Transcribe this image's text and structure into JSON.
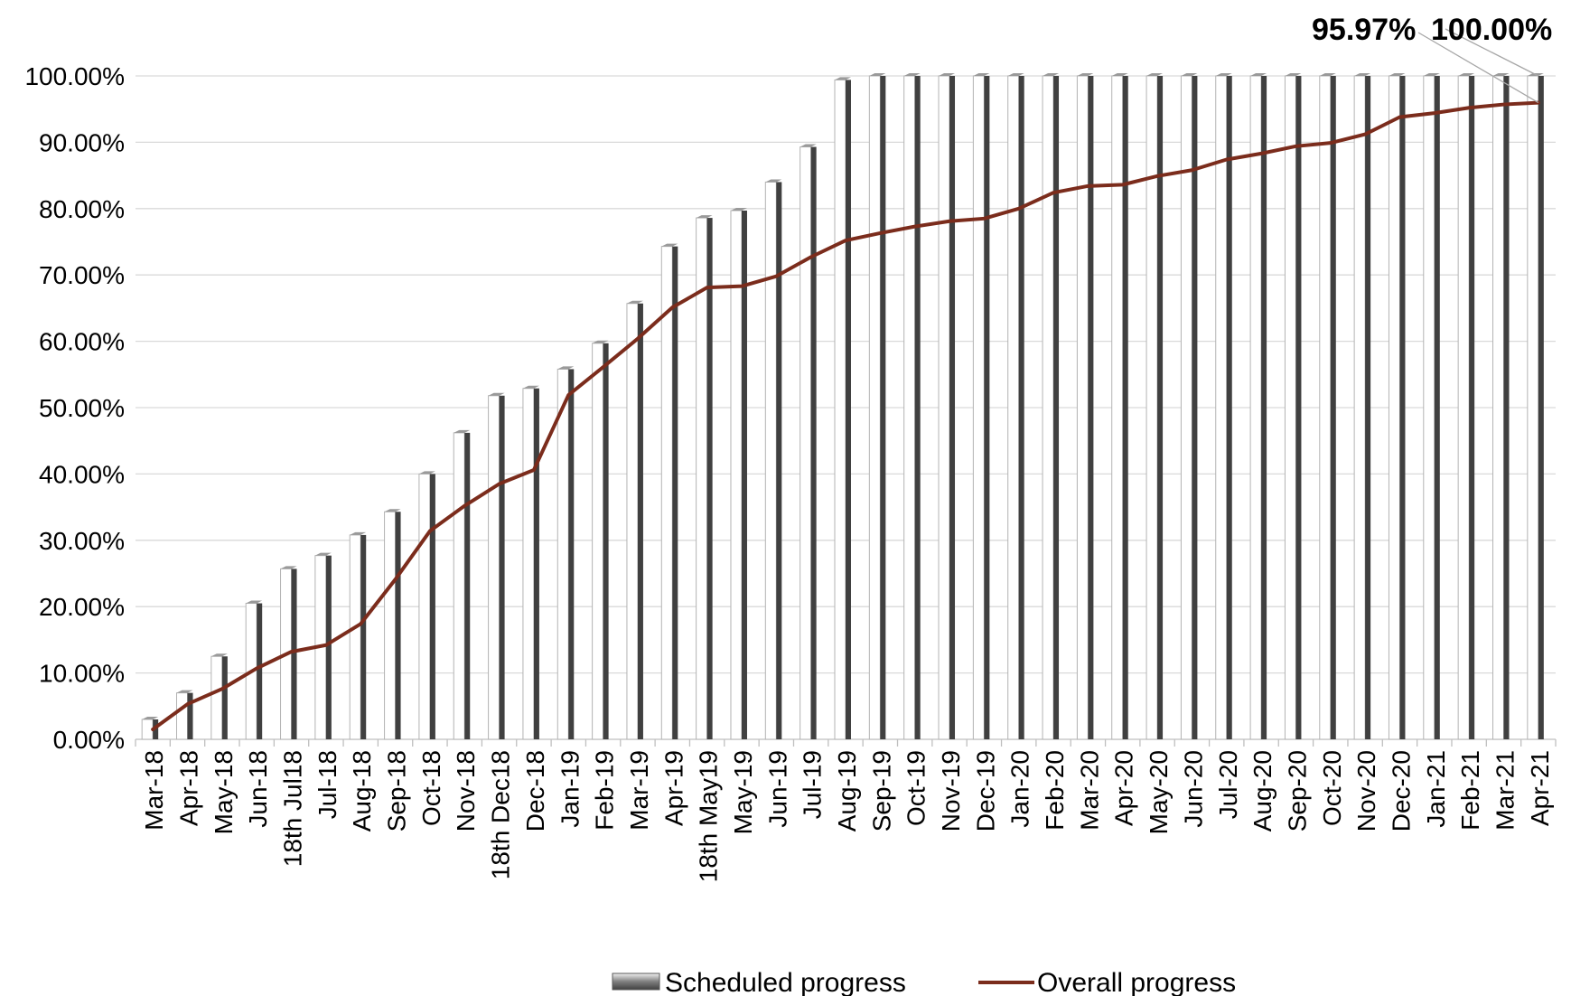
{
  "chart_data": {
    "type": "bar",
    "categories": [
      "Mar-18",
      "Apr-18",
      "May-18",
      "Jun-18",
      "18th Jul18",
      "Jul-18",
      "Aug-18",
      "Sep-18",
      "Oct-18",
      "Nov-18",
      "18th Dec18",
      "Dec-18",
      "Jan-19",
      "Feb-19",
      "Mar-19",
      "Apr-19",
      "18th May19",
      "May-19",
      "Jun-19",
      "Jul-19",
      "Aug-19",
      "Sep-19",
      "Oct-19",
      "Nov-19",
      "Dec-19",
      "Jan-20",
      "Feb-20",
      "Mar-20",
      "Apr-20",
      "May-20",
      "Jun-20",
      "Jul-20",
      "Aug-20",
      "Sep-20",
      "Oct-20",
      "Nov-20",
      "Dec-20",
      "Jan-21",
      "Feb-21",
      "Mar-21",
      "Apr-21"
    ],
    "series": [
      {
        "name": "Scheduled progress",
        "kind": "bar",
        "color": "#404040",
        "values": [
          3.0,
          7.0,
          12.5,
          20.5,
          25.7,
          27.7,
          30.8,
          34.3,
          40.0,
          46.2,
          51.8,
          52.9,
          55.8,
          59.7,
          65.7,
          74.3,
          78.6,
          79.7,
          84.0,
          89.3,
          99.4,
          100,
          100,
          100,
          100,
          100,
          100,
          100,
          100,
          100,
          100,
          100,
          100,
          100,
          100,
          100,
          100,
          100,
          100,
          100,
          100
        ]
      },
      {
        "name": "Overall progress",
        "kind": "line",
        "color": "#7b2c1c",
        "values": [
          1.5,
          5.3,
          7.6,
          10.7,
          13.2,
          14.2,
          17.4,
          24.1,
          31.4,
          35.2,
          38.5,
          40.6,
          51.9,
          56.1,
          60.4,
          65.1,
          68.1,
          68.3,
          69.8,
          72.7,
          75.2,
          76.3,
          77.3,
          78.1,
          78.5,
          80.0,
          82.4,
          83.4,
          83.6,
          84.9,
          85.8,
          87.4,
          88.3,
          89.4,
          89.9,
          91.2,
          93.8,
          94.4,
          95.2,
          95.7,
          95.97
        ]
      }
    ],
    "yticks": [
      "0.00%",
      "10.00%",
      "20.00%",
      "30.00%",
      "40.00%",
      "50.00%",
      "60.00%",
      "70.00%",
      "80.00%",
      "90.00%",
      "100.00%"
    ],
    "ylim": [
      0,
      100
    ],
    "annotations": [
      "95.97%",
      "100.00%"
    ],
    "legend_position": "bottom",
    "grid": true,
    "xlabel": "",
    "ylabel": ""
  }
}
